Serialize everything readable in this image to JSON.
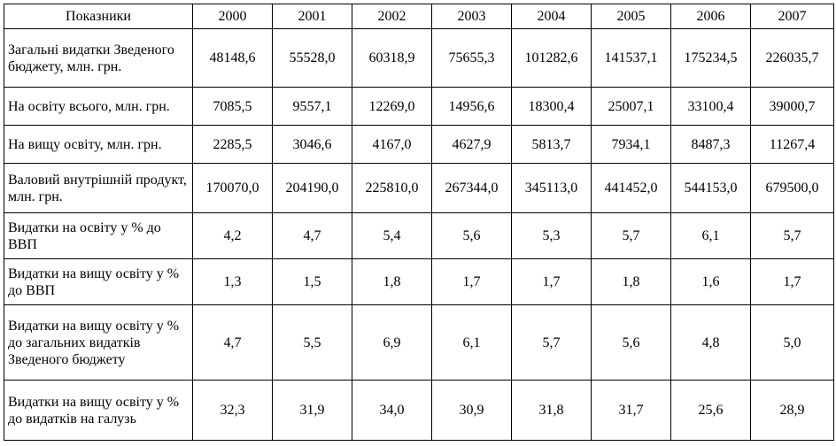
{
  "header": {
    "indicator": "Показники",
    "years": [
      "2000",
      "2001",
      "2002",
      "2003",
      "2004",
      "2005",
      "2006",
      "2007"
    ]
  },
  "rows": [
    {
      "label": "Загальні видатки Зведеного бюджету, млн. грн.",
      "values": [
        "48148,6",
        "55528,0",
        "60318,9",
        "75655,3",
        "101282,6",
        "141537,1",
        "175234,5",
        "226035,7"
      ]
    },
    {
      "label": "На освіту всього, млн. грн.",
      "values": [
        "7085,5",
        "9557,1",
        "12269,0",
        "14956,6",
        "18300,4",
        "25007,1",
        "33100,4",
        "39000,7"
      ]
    },
    {
      "label": "На вищу освіту, млн. грн.",
      "values": [
        "2285,5",
        "3046,6",
        "4167,0",
        "4627,9",
        "5813,7",
        "7934,1",
        "8487,3",
        "11267,4"
      ]
    },
    {
      "label": "Валовий внутрішній продукт, млн. грн.",
      "values": [
        "170070,0",
        "204190,0",
        "225810,0",
        "267344,0",
        "345113,0",
        "441452,0",
        "544153,0",
        "679500,0"
      ]
    },
    {
      "label": "Видатки на освіту у % до ВВП",
      "values": [
        "4,2",
        "4,7",
        "5,4",
        "5,6",
        "5,3",
        "5,7",
        "6,1",
        "5,7"
      ]
    },
    {
      "label": "Видатки на вищу освіту у % до ВВП",
      "values": [
        "1,3",
        "1,5",
        "1,8",
        "1,7",
        "1,7",
        "1,8",
        "1,6",
        "1,7"
      ]
    },
    {
      "label": "Видатки на вищу освіту у % до загальних видатків Зведеного бюджету",
      "values": [
        "4,7",
        "5,5",
        "6,9",
        "6,1",
        "5,7",
        "5,6",
        "4,8",
        "5,0"
      ]
    },
    {
      "label": "Видатки на вищу освіту у % до видатків на галузь",
      "values": [
        "32,3",
        "31,9",
        "34,0",
        "30,9",
        "31,8",
        "31,7",
        "25,6",
        "28,9"
      ]
    }
  ]
}
